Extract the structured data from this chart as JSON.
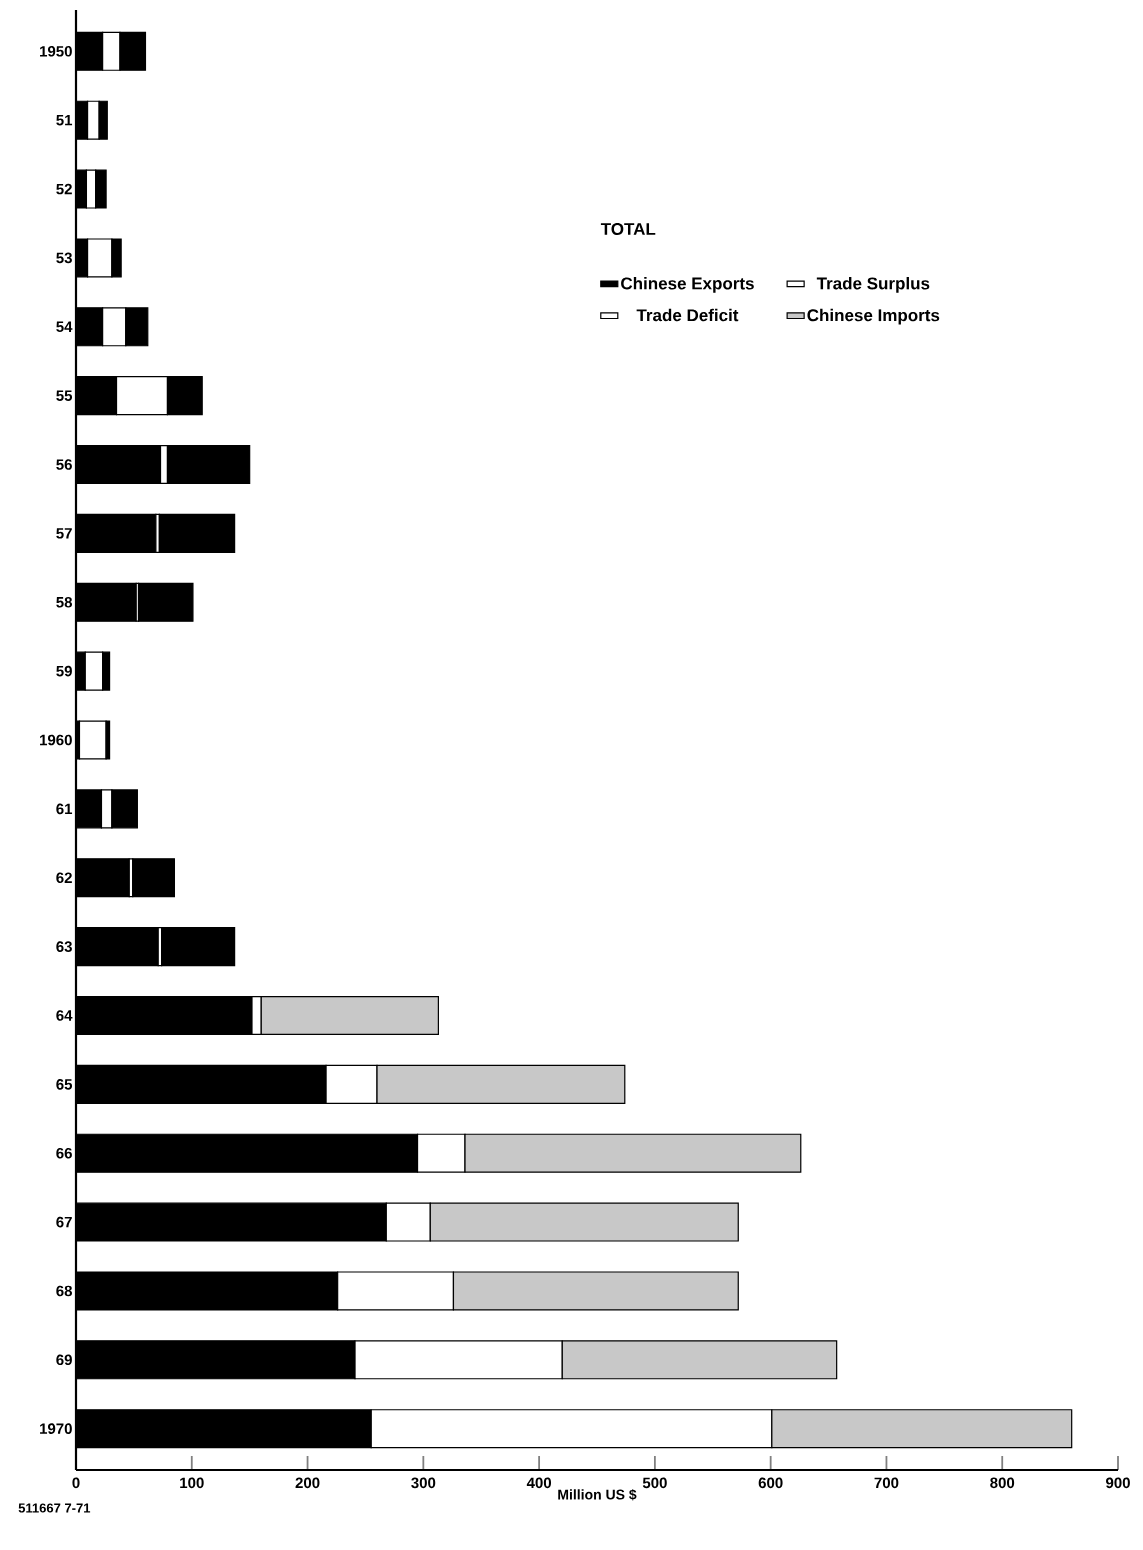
{
  "chart_data": {
    "type": "bar",
    "orientation": "horizontal",
    "stacked": true,
    "xlabel": "Million US $",
    "legend_title": "TOTAL",
    "legend": "top right",
    "annotations": [
      "Trade Deficit",
      "511667 7-71"
    ],
    "categories": [
      "1950",
      "51",
      "52",
      "53",
      "54",
      "55",
      "56",
      "57",
      "58",
      "59",
      "1960",
      "61",
      "62",
      "63",
      "64",
      "65",
      "66",
      "67",
      "68",
      "69",
      "1970"
    ],
    "series": [
      {
        "name": "Chinese Exports",
        "color": "#000000",
        "values": [
          23,
          10,
          9,
          10,
          23,
          35,
          73,
          69,
          52,
          8,
          3,
          22,
          46,
          71,
          152,
          216,
          295,
          268,
          226,
          241,
          255
        ]
      },
      {
        "name": "Trade Surplus",
        "color": "#ffffff",
        "values": [
          15,
          10,
          8,
          21,
          20,
          44,
          6,
          3,
          2,
          15,
          23,
          9,
          3,
          3,
          8,
          44,
          41,
          38,
          100,
          179,
          346
        ]
      },
      {
        "name": "Chinese Imports",
        "color": "#c8c8c8",
        "colors": [
          "#000000",
          "#000000",
          "#000000",
          "#000000",
          "#000000",
          "#000000",
          "#000000",
          "#000000",
          "#000000",
          "#000000",
          "#000000",
          "#000000",
          "#000000",
          "#000000",
          "#c8c8c8",
          "#c8c8c8",
          "#c8c8c8",
          "#c8c8c8",
          "#c8c8c8",
          "#c8c8c8",
          "#c8c8c8"
        ],
        "values": [
          22,
          7,
          9,
          8,
          19,
          30,
          71,
          65,
          47,
          6,
          3,
          22,
          36,
          63,
          153,
          214,
          290,
          266,
          246,
          237,
          259
        ]
      }
    ],
    "xlim": [
      0,
      900
    ],
    "xticks": [
      0,
      100,
      200,
      300,
      400,
      500,
      600,
      700,
      800,
      900
    ]
  }
}
